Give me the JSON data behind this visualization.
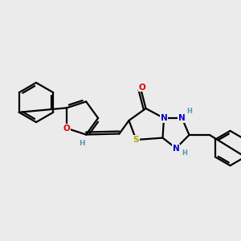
{
  "background_color": "#ebebeb",
  "bond_color": "#000000",
  "atom_colors": {
    "O": "#dd0000",
    "N": "#0000cc",
    "S": "#aaaa00",
    "H_gray": "#5599aa",
    "C": "#000000"
  },
  "figsize": [
    3.0,
    3.0
  ],
  "dpi": 100,
  "xlim": [
    0,
    10
  ],
  "ylim": [
    0,
    10
  ]
}
